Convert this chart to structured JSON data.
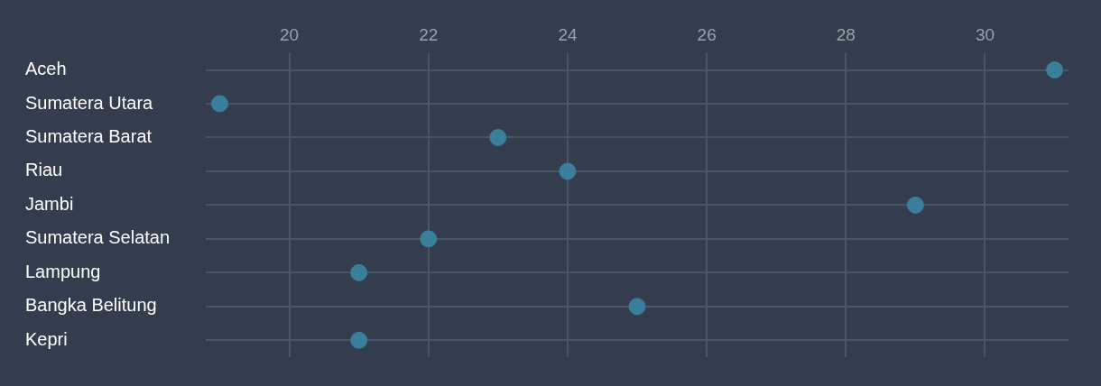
{
  "chart_data": {
    "type": "scatter",
    "orientation": "horizontal",
    "categories": [
      "Aceh",
      "Sumatera Utara",
      "Sumatera Barat",
      "Riau",
      "Jambi",
      "Sumatera Selatan",
      "Lampung",
      "Bangka Belitung",
      "Kepri"
    ],
    "values": [
      31,
      19,
      23,
      24,
      29,
      22,
      21,
      25,
      21
    ],
    "color": "#3a7f9c",
    "xlim": [
      18.8,
      31.2
    ],
    "xticks": [
      20,
      22,
      24,
      26,
      28,
      30
    ],
    "grid": true,
    "marker": "circle"
  }
}
